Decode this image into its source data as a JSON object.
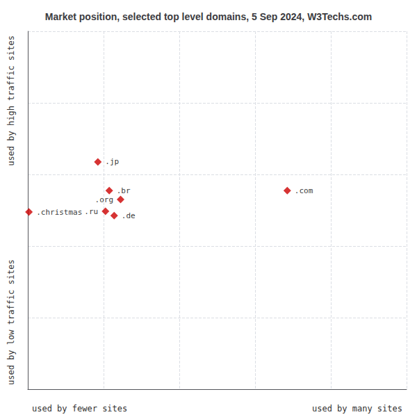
{
  "chart_data": {
    "type": "scatter",
    "title": "Market position, selected top level domains, 5 Sep 2024, W3Techs.com",
    "xlabel_left": "used by fewer sites",
    "xlabel_right": "used by many sites",
    "ylabel_bottom": "used by low traffic sites",
    "ylabel_top": "used by high traffic sites",
    "labels": [
      ".jp",
      ".br",
      ".org",
      ".christmas",
      ".ru",
      ".de",
      ".com"
    ],
    "x": [
      1.85,
      2.15,
      2.45,
      0.03,
      2.05,
      2.28,
      6.85
    ],
    "values": [
      6.35,
      5.55,
      5.3,
      4.95,
      4.97,
      4.85,
      5.55
    ],
    "xlim": [
      0,
      10
    ],
    "ylim": [
      0,
      10
    ],
    "xticks": [
      0,
      2,
      4,
      6,
      8,
      10
    ],
    "yticks": [
      0,
      2,
      4,
      6,
      8,
      10
    ],
    "grid": true,
    "tick_labels": false,
    "color": "#cc0000",
    "marker": "diamond"
  }
}
